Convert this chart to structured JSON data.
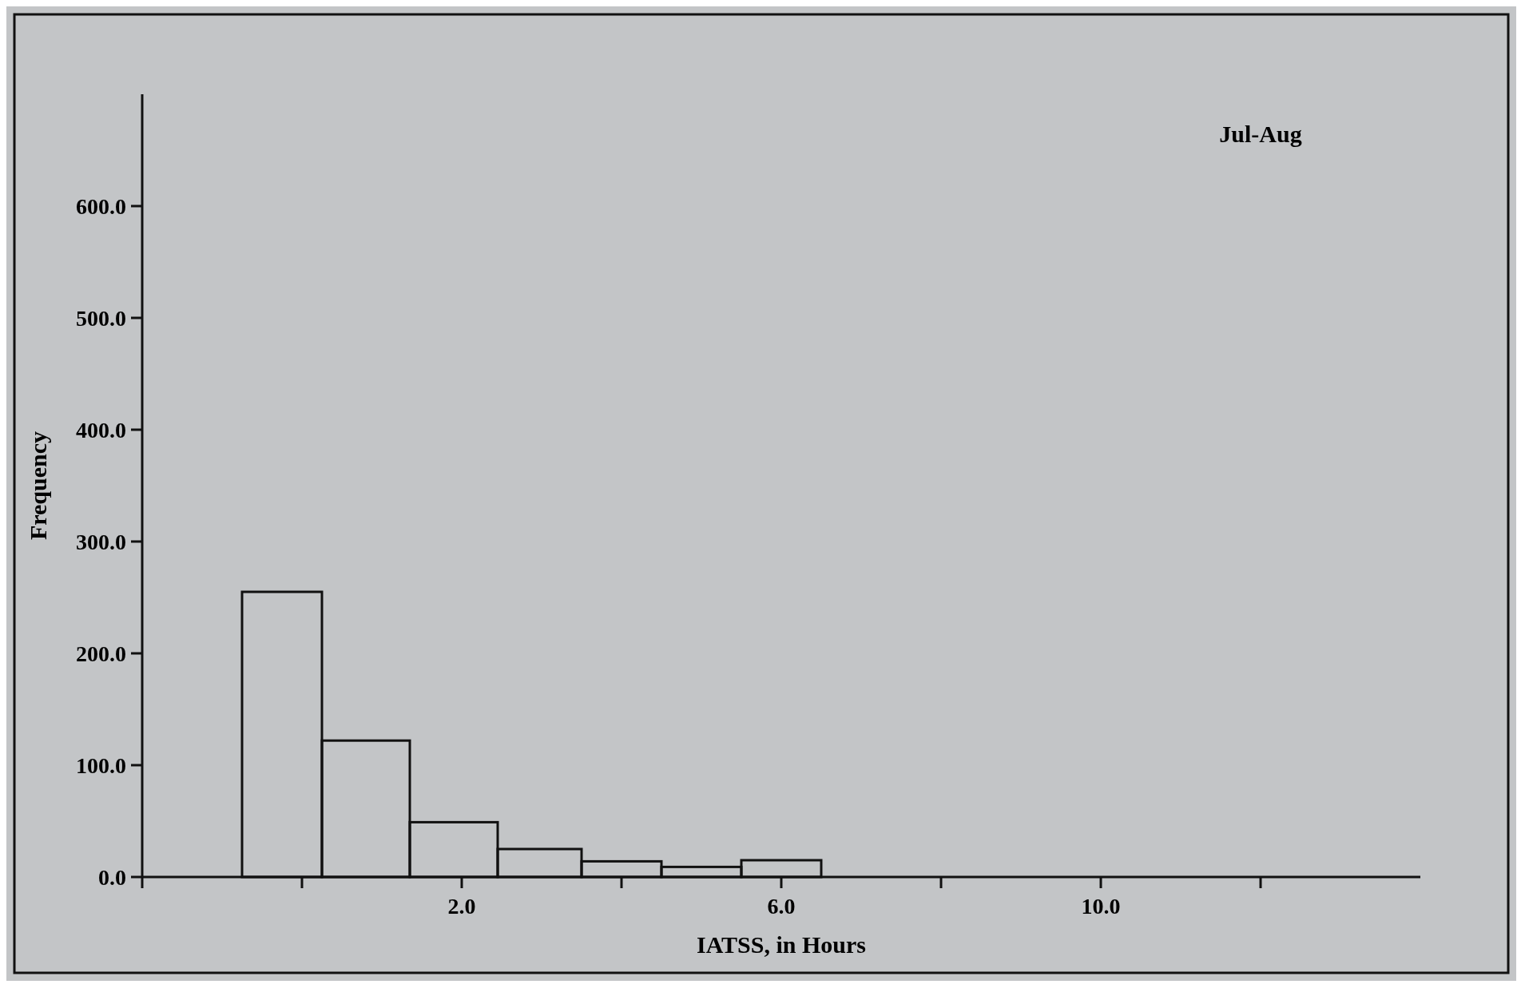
{
  "chart_data": {
    "type": "histogram",
    "title": "Jul-Aug",
    "xlabel": "IATSS, in Hours",
    "ylabel": "Frequency",
    "bins": [
      -0.75,
      0.25,
      1.35,
      2.45,
      3.5,
      4.5,
      5.5,
      6.5
    ],
    "values": [
      255,
      122,
      49,
      25,
      14,
      9,
      15
    ],
    "color": "#111111",
    "xlim": [
      -2,
      14
    ],
    "xticks": [
      {
        "value": -2,
        "label": null
      },
      {
        "value": 0,
        "label": null
      },
      {
        "value": 2,
        "label": "2.0"
      },
      {
        "value": 4,
        "label": null
      },
      {
        "value": 6,
        "label": "6.0"
      },
      {
        "value": 8,
        "label": null
      },
      {
        "value": 10,
        "label": "10.0"
      },
      {
        "value": 12,
        "label": null
      }
    ],
    "ylim": [
      0,
      700
    ],
    "yticks": [
      {
        "value": 0,
        "label": "0.0"
      },
      {
        "value": 100,
        "label": "100.0"
      },
      {
        "value": 200,
        "label": "200.0"
      },
      {
        "value": 300,
        "label": "300.0"
      },
      {
        "value": 400,
        "label": "400.0"
      },
      {
        "value": 500,
        "label": "500.0"
      },
      {
        "value": 600,
        "label": "600.0"
      }
    ],
    "grid": false
  }
}
